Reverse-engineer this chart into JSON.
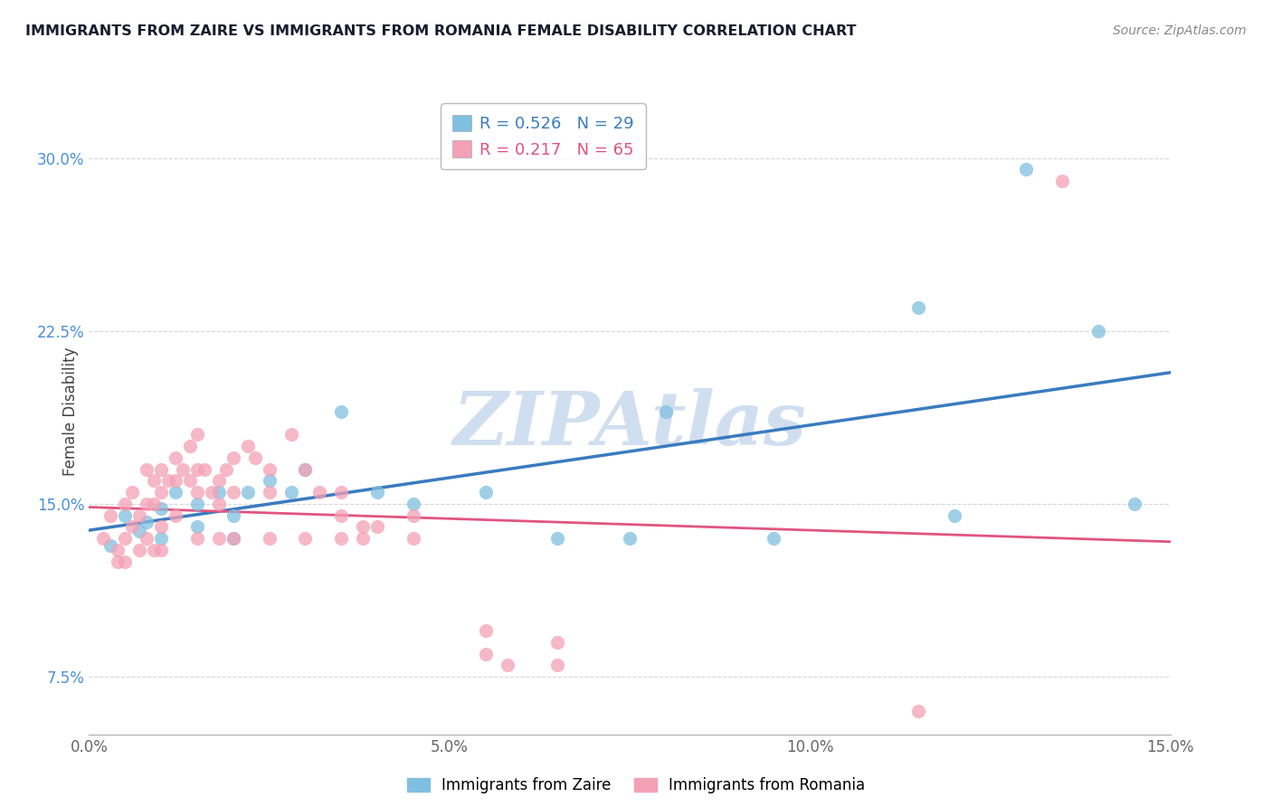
{
  "title": "IMMIGRANTS FROM ZAIRE VS IMMIGRANTS FROM ROMANIA FEMALE DISABILITY CORRELATION CHART",
  "source": "Source: ZipAtlas.com",
  "ylabel": "Female Disability",
  "xticklabels": [
    "0.0%",
    "5.0%",
    "10.0%",
    "15.0%"
  ],
  "yticklabels": [
    "7.5%",
    "15.0%",
    "22.5%",
    "30.0%"
  ],
  "xlim": [
    0.0,
    15.0
  ],
  "ylim": [
    5.0,
    33.0
  ],
  "legend_labels_bottom": [
    "Immigrants from Zaire",
    "Immigrants from Romania"
  ],
  "zaire_color": "#7fbfdf",
  "romania_color": "#f4a0b5",
  "zaire_R": 0.526,
  "zaire_N": 29,
  "romania_R": 0.217,
  "romania_N": 65,
  "watermark": "ZIPAtlas",
  "zaire_points": [
    [
      0.3,
      13.2
    ],
    [
      0.5,
      14.5
    ],
    [
      0.7,
      13.8
    ],
    [
      0.8,
      14.2
    ],
    [
      1.0,
      14.8
    ],
    [
      1.0,
      13.5
    ],
    [
      1.2,
      15.5
    ],
    [
      1.5,
      15.0
    ],
    [
      1.5,
      14.0
    ],
    [
      1.8,
      15.5
    ],
    [
      2.0,
      14.5
    ],
    [
      2.0,
      13.5
    ],
    [
      2.2,
      15.5
    ],
    [
      2.5,
      16.0
    ],
    [
      2.8,
      15.5
    ],
    [
      3.0,
      16.5
    ],
    [
      3.5,
      19.0
    ],
    [
      4.0,
      15.5
    ],
    [
      4.5,
      15.0
    ],
    [
      5.5,
      15.5
    ],
    [
      6.5,
      13.5
    ],
    [
      7.5,
      13.5
    ],
    [
      8.0,
      19.0
    ],
    [
      9.5,
      13.5
    ],
    [
      11.5,
      23.5
    ],
    [
      12.0,
      14.5
    ],
    [
      13.0,
      29.5
    ],
    [
      14.0,
      22.5
    ],
    [
      14.5,
      15.0
    ]
  ],
  "romania_points": [
    [
      0.2,
      13.5
    ],
    [
      0.3,
      14.5
    ],
    [
      0.4,
      13.0
    ],
    [
      0.4,
      12.5
    ],
    [
      0.5,
      15.0
    ],
    [
      0.5,
      13.5
    ],
    [
      0.5,
      12.5
    ],
    [
      0.6,
      15.5
    ],
    [
      0.6,
      14.0
    ],
    [
      0.7,
      14.5
    ],
    [
      0.7,
      13.0
    ],
    [
      0.8,
      16.5
    ],
    [
      0.8,
      15.0
    ],
    [
      0.8,
      13.5
    ],
    [
      0.9,
      16.0
    ],
    [
      0.9,
      15.0
    ],
    [
      0.9,
      13.0
    ],
    [
      1.0,
      16.5
    ],
    [
      1.0,
      15.5
    ],
    [
      1.0,
      14.0
    ],
    [
      1.0,
      13.0
    ],
    [
      1.1,
      16.0
    ],
    [
      1.2,
      17.0
    ],
    [
      1.2,
      16.0
    ],
    [
      1.2,
      14.5
    ],
    [
      1.3,
      16.5
    ],
    [
      1.4,
      17.5
    ],
    [
      1.4,
      16.0
    ],
    [
      1.5,
      18.0
    ],
    [
      1.5,
      16.5
    ],
    [
      1.5,
      15.5
    ],
    [
      1.6,
      16.5
    ],
    [
      1.7,
      15.5
    ],
    [
      1.8,
      16.0
    ],
    [
      1.8,
      15.0
    ],
    [
      1.9,
      16.5
    ],
    [
      2.0,
      17.0
    ],
    [
      2.0,
      15.5
    ],
    [
      2.2,
      17.5
    ],
    [
      2.3,
      17.0
    ],
    [
      2.5,
      16.5
    ],
    [
      2.5,
      15.5
    ],
    [
      2.8,
      18.0
    ],
    [
      3.0,
      16.5
    ],
    [
      3.2,
      15.5
    ],
    [
      3.5,
      15.5
    ],
    [
      3.5,
      14.5
    ],
    [
      3.8,
      14.0
    ],
    [
      4.0,
      14.0
    ],
    [
      4.5,
      13.5
    ],
    [
      1.5,
      13.5
    ],
    [
      1.8,
      13.5
    ],
    [
      2.0,
      13.5
    ],
    [
      2.5,
      13.5
    ],
    [
      3.0,
      13.5
    ],
    [
      3.5,
      13.5
    ],
    [
      3.8,
      13.5
    ],
    [
      4.5,
      14.5
    ],
    [
      5.5,
      9.5
    ],
    [
      5.5,
      8.5
    ],
    [
      5.8,
      8.0
    ],
    [
      6.5,
      9.0
    ],
    [
      6.5,
      8.0
    ],
    [
      11.5,
      6.0
    ],
    [
      13.5,
      29.0
    ]
  ],
  "background_color": "#ffffff",
  "grid_color": "#cccccc",
  "title_color": "#1a1a2e",
  "zaire_line_color": "#3a7bbf",
  "romania_line_color": "#e05580",
  "ytick_color": "#4a90d9"
}
